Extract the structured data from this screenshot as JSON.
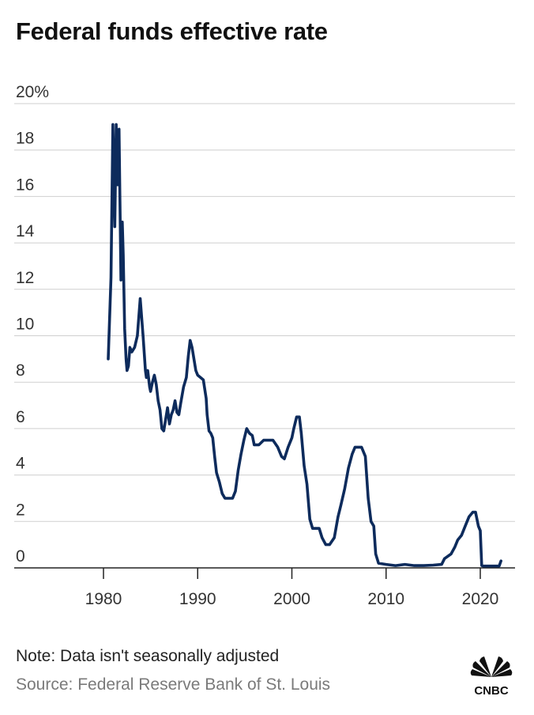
{
  "title": "Federal funds effective rate",
  "note": "Note: Data isn't seasonally adjusted",
  "source": "Source: Federal Reserve Bank of St. Louis",
  "brand": "CNBC",
  "colors": {
    "line": "#0d2b5c",
    "grid": "#cfcfcf",
    "axis": "#222222"
  },
  "chart_data": {
    "type": "line",
    "title": "Federal funds effective rate",
    "xlabel": "",
    "ylabel": "",
    "xlim": [
      1970,
      2023.5
    ],
    "ylim": [
      0,
      20
    ],
    "y_ticks": [
      {
        "value": 20,
        "label": "20%"
      },
      {
        "value": 18,
        "label": "18"
      },
      {
        "value": 16,
        "label": "16"
      },
      {
        "value": 14,
        "label": "14"
      },
      {
        "value": 12,
        "label": "12"
      },
      {
        "value": 10,
        "label": "10"
      },
      {
        "value": 8,
        "label": "8"
      },
      {
        "value": 6,
        "label": "6"
      },
      {
        "value": 4,
        "label": "4"
      },
      {
        "value": 2,
        "label": "2"
      },
      {
        "value": 0,
        "label": "0"
      }
    ],
    "x_ticks": [
      {
        "value": 1980,
        "label": "1980"
      },
      {
        "value": 1990,
        "label": "1990"
      },
      {
        "value": 2000,
        "label": "2000"
      },
      {
        "value": 2010,
        "label": "2010"
      },
      {
        "value": 2020,
        "label": "2020"
      }
    ],
    "grid": true,
    "series": [
      {
        "x": [
          1980.5,
          1980.8,
          1981.0,
          1981.2,
          1981.35,
          1981.5,
          1981.65,
          1981.85,
          1982.0,
          1982.1,
          1982.25,
          1982.4,
          1982.5,
          1982.65,
          1982.8,
          1983.0,
          1983.3,
          1983.6,
          1983.9,
          1984.2,
          1984.45,
          1984.55,
          1984.7,
          1984.9,
          1985.0,
          1985.2,
          1985.4,
          1985.6,
          1985.8,
          1986.0,
          1986.2,
          1986.4,
          1986.6,
          1986.8,
          1987.0,
          1987.2,
          1987.4,
          1987.6,
          1987.8,
          1988.0,
          1988.2,
          1988.5,
          1988.8,
          1989.0,
          1989.2,
          1989.4,
          1989.6,
          1989.8,
          1990.0,
          1990.3,
          1990.6,
          1990.9,
          1991.0,
          1991.2,
          1991.4,
          1991.6,
          1991.8,
          1992.0,
          1992.3,
          1992.6,
          1992.9,
          1993.3,
          1993.7,
          1994.0,
          1994.3,
          1994.6,
          1994.9,
          1995.2,
          1995.5,
          1995.8,
          1996.0,
          1996.5,
          1997.0,
          1997.5,
          1998.0,
          1998.5,
          1998.9,
          1999.2,
          1999.6,
          2000.0,
          2000.2,
          2000.5,
          2000.8,
          2001.0,
          2001.3,
          2001.6,
          2001.9,
          2002.2,
          2002.6,
          2002.9,
          2003.2,
          2003.6,
          2004.0,
          2004.5,
          2004.9,
          2005.2,
          2005.6,
          2006.0,
          2006.4,
          2006.7,
          2007.0,
          2007.4,
          2007.8,
          2008.1,
          2008.4,
          2008.7,
          2008.9,
          2009.2,
          2010.0,
          2011.0,
          2012.0,
          2013.0,
          2014.0,
          2015.0,
          2015.9,
          2016.2,
          2016.9,
          2017.3,
          2017.6,
          2018.0,
          2018.4,
          2018.8,
          2019.2,
          2019.5,
          2019.8,
          2020.0,
          2020.15,
          2020.3,
          2021.0,
          2022.0,
          2022.2
        ],
        "y": [
          9.0,
          12.5,
          19.1,
          14.7,
          19.1,
          16.5,
          18.9,
          12.4,
          14.9,
          13.5,
          10.3,
          9.0,
          8.5,
          8.7,
          9.5,
          9.3,
          9.5,
          10.0,
          11.6,
          10.0,
          8.5,
          8.2,
          8.5,
          7.8,
          7.6,
          8.0,
          8.3,
          7.9,
          7.2,
          6.8,
          6.0,
          5.9,
          6.4,
          6.9,
          6.2,
          6.6,
          6.8,
          7.2,
          6.7,
          6.6,
          7.1,
          7.8,
          8.2,
          9.1,
          9.8,
          9.5,
          9.0,
          8.5,
          8.3,
          8.2,
          8.1,
          7.3,
          6.6,
          5.9,
          5.8,
          5.6,
          4.8,
          4.1,
          3.7,
          3.2,
          3.0,
          3.0,
          3.0,
          3.3,
          4.2,
          4.9,
          5.5,
          6.0,
          5.8,
          5.7,
          5.3,
          5.3,
          5.5,
          5.5,
          5.5,
          5.2,
          4.8,
          4.7,
          5.2,
          5.6,
          6.0,
          6.5,
          6.5,
          5.8,
          4.4,
          3.6,
          2.1,
          1.7,
          1.7,
          1.7,
          1.3,
          1.0,
          1.0,
          1.3,
          2.2,
          2.7,
          3.4,
          4.3,
          4.9,
          5.2,
          5.2,
          5.2,
          4.8,
          3.0,
          2.0,
          1.8,
          0.6,
          0.2,
          0.15,
          0.1,
          0.15,
          0.1,
          0.1,
          0.12,
          0.15,
          0.4,
          0.6,
          0.9,
          1.2,
          1.4,
          1.8,
          2.2,
          2.4,
          2.4,
          1.8,
          1.6,
          0.1,
          0.08,
          0.08,
          0.08,
          0.3
        ]
      }
    ]
  }
}
